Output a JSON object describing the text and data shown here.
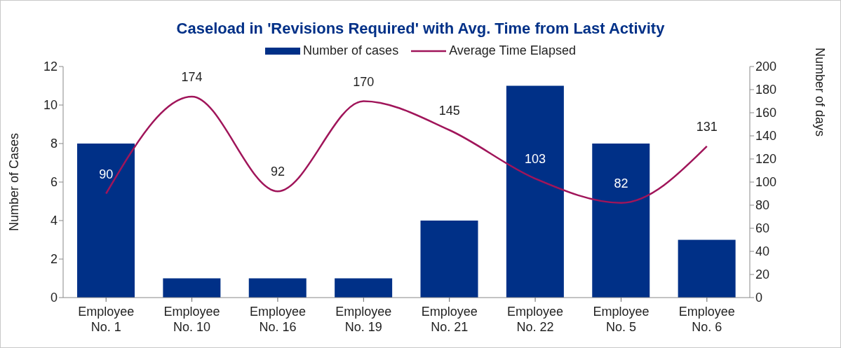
{
  "chart_data": {
    "type": "bar",
    "title": "Caseload in 'Revisions Required' with Avg. Time from Last Activity",
    "ylabel": "Number of Cases",
    "y2label": "Number of days",
    "categories": [
      "Employee No. 1",
      "Employee No. 10",
      "Employee No. 16",
      "Employee No. 19",
      "Employee No. 21",
      "Employee No. 22",
      "Employee No. 5",
      "Employee No. 6"
    ],
    "series": [
      {
        "name": "Number of cases",
        "color": "#003087",
        "values": [
          8,
          1,
          1,
          1,
          4,
          11,
          8,
          3
        ]
      },
      {
        "name": "Average Time Elapsed",
        "type": "line",
        "axis": "y2",
        "color": "#a0155a",
        "marker": "none",
        "data_labels": true,
        "values": [
          90,
          174,
          92,
          170,
          145,
          103,
          82,
          131
        ]
      }
    ],
    "ylim": [
      0,
      12
    ],
    "yticks": [
      0,
      2,
      4,
      6,
      8,
      10,
      12
    ],
    "y2lim": [
      0,
      200
    ],
    "y2ticks": [
      0,
      20,
      40,
      60,
      80,
      100,
      120,
      140,
      160,
      180,
      200
    ],
    "legend": "top"
  }
}
